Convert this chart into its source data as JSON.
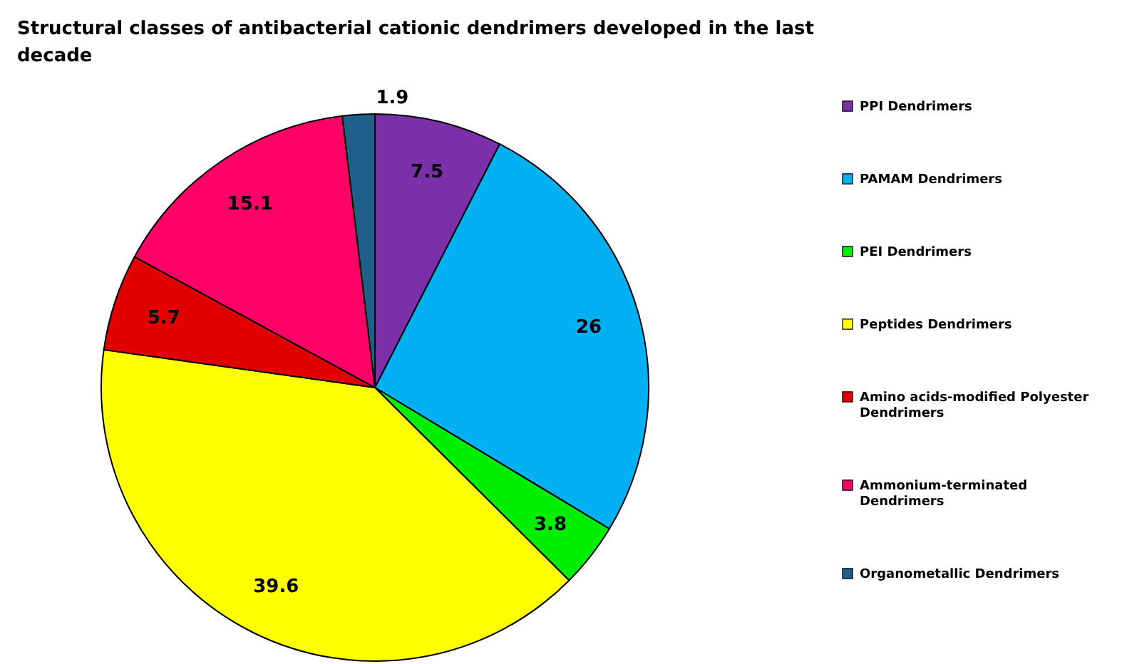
{
  "chart_data": {
    "type": "pie",
    "title": "Structural classes of antibacterial cationic dendrimers developed in the last decade",
    "categories": [
      "PPI Dendrimers",
      "PAMAM Dendrimers",
      "PEI Dendrimers",
      "Peptides Dendrimers",
      "Amino acids-modified Polyester Dendrimers",
      "Ammonium-terminated Dendrimers",
      "Organometallic Dendrimers"
    ],
    "values": [
      7.5,
      26,
      3.8,
      39.6,
      5.7,
      15.1,
      1.9
    ],
    "colors": [
      "#7b2fa8",
      "#00b0f0",
      "#00ee00",
      "#ffff00",
      "#e00000",
      "#ff0066",
      "#1f5f8b"
    ],
    "data_labels": true,
    "legend": "right"
  }
}
